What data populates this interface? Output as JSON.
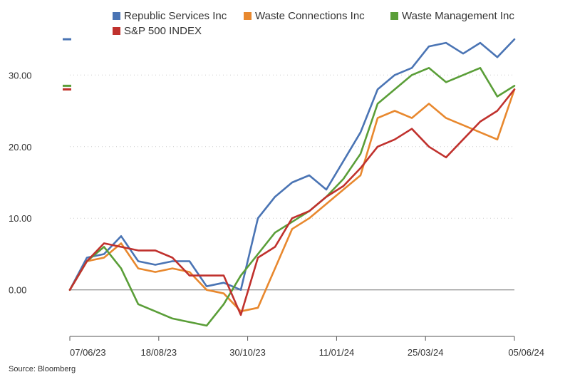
{
  "chart_data": {
    "type": "line",
    "title": "",
    "xlabel": "",
    "ylabel": "",
    "ylim": [
      -6.5,
      36.5
    ],
    "yticks": [
      0,
      10,
      20,
      30
    ],
    "ytick_labels": [
      "0.00",
      "10.00",
      "20.00",
      "30.00"
    ],
    "xticks": [
      "07/06/23",
      "18/08/23",
      "30/10/23",
      "11/01/24",
      "25/03/24",
      "05/06/24"
    ],
    "grid": "horizontal dotted",
    "legend_position": "top",
    "source": "Source: Bloomberg",
    "x": [
      "07/06/23",
      "21/06/23",
      "05/07/23",
      "19/07/23",
      "02/08/23",
      "16/08/23",
      "30/08/23",
      "13/09/23",
      "27/09/23",
      "11/10/23",
      "25/10/23",
      "08/11/23",
      "22/11/23",
      "06/12/23",
      "20/12/23",
      "03/01/24",
      "17/01/24",
      "31/01/24",
      "14/02/24",
      "28/02/24",
      "13/03/24",
      "27/03/24",
      "10/04/24",
      "24/04/24",
      "08/05/24",
      "22/05/24",
      "05/06/24"
    ],
    "series": [
      {
        "name": "Republic Services Inc",
        "color": "#4a74b4",
        "values": [
          0.0,
          4.5,
          5.0,
          7.5,
          4.0,
          3.5,
          4.0,
          4.0,
          0.5,
          1.0,
          0.0,
          10.0,
          13.0,
          15.0,
          16.0,
          14.0,
          18.0,
          22.0,
          28.0,
          30.0,
          31.0,
          34.0,
          34.5,
          33.0,
          34.5,
          32.5,
          35.0
        ],
        "end_value": 35.0
      },
      {
        "name": "Waste Connections Inc",
        "color": "#e8882e",
        "values": [
          0.0,
          4.0,
          4.5,
          6.5,
          3.0,
          2.5,
          3.0,
          2.5,
          0.0,
          -0.5,
          -3.0,
          -2.5,
          3.0,
          8.5,
          10.0,
          12.0,
          14.0,
          16.0,
          24.0,
          25.0,
          24.0,
          26.0,
          24.0,
          23.0,
          22.0,
          21.0,
          28.0
        ],
        "end_value": 28.0
      },
      {
        "name": "Waste Management Inc",
        "color": "#5a9e38",
        "values": [
          0.0,
          4.0,
          6.0,
          3.0,
          -2.0,
          -3.0,
          -4.0,
          -4.5,
          -5.0,
          -2.0,
          2.0,
          5.0,
          8.0,
          9.5,
          11.0,
          13.0,
          15.5,
          19.0,
          26.0,
          28.0,
          30.0,
          31.0,
          29.0,
          30.0,
          31.0,
          27.0,
          28.5
        ],
        "end_value": 28.5
      },
      {
        "name": "S&P 500 INDEX",
        "color": "#c0312d",
        "values": [
          0.0,
          4.0,
          6.5,
          6.0,
          5.5,
          5.5,
          4.5,
          2.0,
          2.0,
          2.0,
          -3.5,
          4.5,
          6.0,
          10.0,
          11.0,
          13.0,
          14.5,
          17.0,
          20.0,
          21.0,
          22.5,
          20.0,
          18.5,
          21.0,
          23.5,
          25.0,
          28.0
        ],
        "end_value": 28.0
      }
    ]
  }
}
